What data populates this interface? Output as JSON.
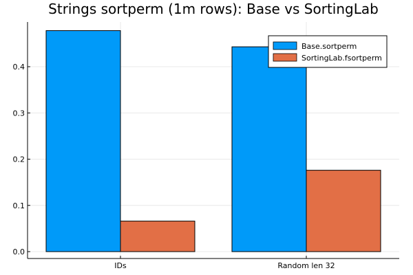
{
  "chart_data": {
    "type": "bar",
    "title": "Strings sortperm (1m rows): Base vs SortingLab",
    "xlabel": "",
    "ylabel": "",
    "categories": [
      "IDs",
      "Random len 32"
    ],
    "series": [
      {
        "name": "Base.sortperm",
        "values": [
          0.478,
          0.443
        ],
        "color": "#009af9"
      },
      {
        "name": "SortingLab.fsortperm",
        "values": [
          0.066,
          0.176
        ],
        "color": "#e26f46"
      }
    ],
    "ylim": [
      0,
      0.48
    ],
    "yticks": [
      0.0,
      0.1,
      0.2,
      0.3,
      0.4
    ],
    "ytick_labels": [
      "0.0",
      "0.1",
      "0.2",
      "0.3",
      "0.4"
    ],
    "grid": true,
    "legend_position": "top-right"
  }
}
